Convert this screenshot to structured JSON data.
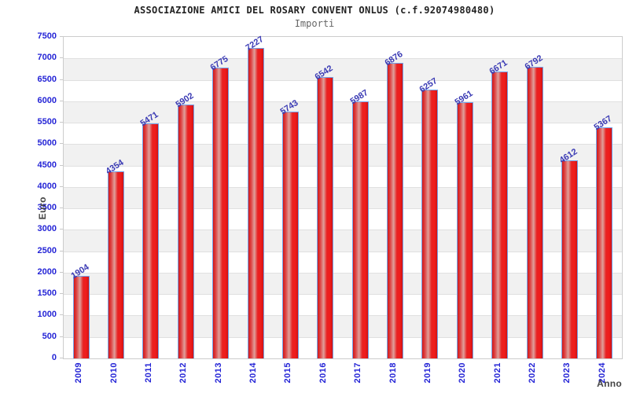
{
  "chart_data": {
    "type": "bar",
    "title": "ASSOCIAZIONE AMICI DEL ROSARY CONVENT ONLUS (c.f.92074980480)",
    "subtitle": "Importi",
    "xlabel": "Anno",
    "ylabel": "Euro",
    "categories": [
      "2009",
      "2010",
      "2011",
      "2012",
      "2013",
      "2014",
      "2015",
      "2016",
      "2017",
      "2018",
      "2019",
      "2020",
      "2021",
      "2022",
      "2023",
      "2024"
    ],
    "values": [
      1904,
      4354,
      5471,
      5902,
      6775,
      7227,
      5743,
      6542,
      5987,
      6876,
      6257,
      5961,
      6671,
      6792,
      4612,
      5367
    ],
    "ylim": [
      0,
      7500
    ],
    "ytick_step": 500,
    "grid": "horizontal",
    "band_style": "alternating-white-gray",
    "legend": "none",
    "colors": {
      "bar_fill": "#e82222",
      "bar_highlight": "#dfa09b",
      "bar_border": "#74a2e8",
      "tick_label": "#2424d6",
      "value_label": "#3a3ab4",
      "axis_title": "#444444",
      "band": "#f1f1f1",
      "gridline": "#e0e0e0",
      "plot_border": "#cccccc",
      "title": "#222222",
      "subtitle": "#666666"
    }
  }
}
